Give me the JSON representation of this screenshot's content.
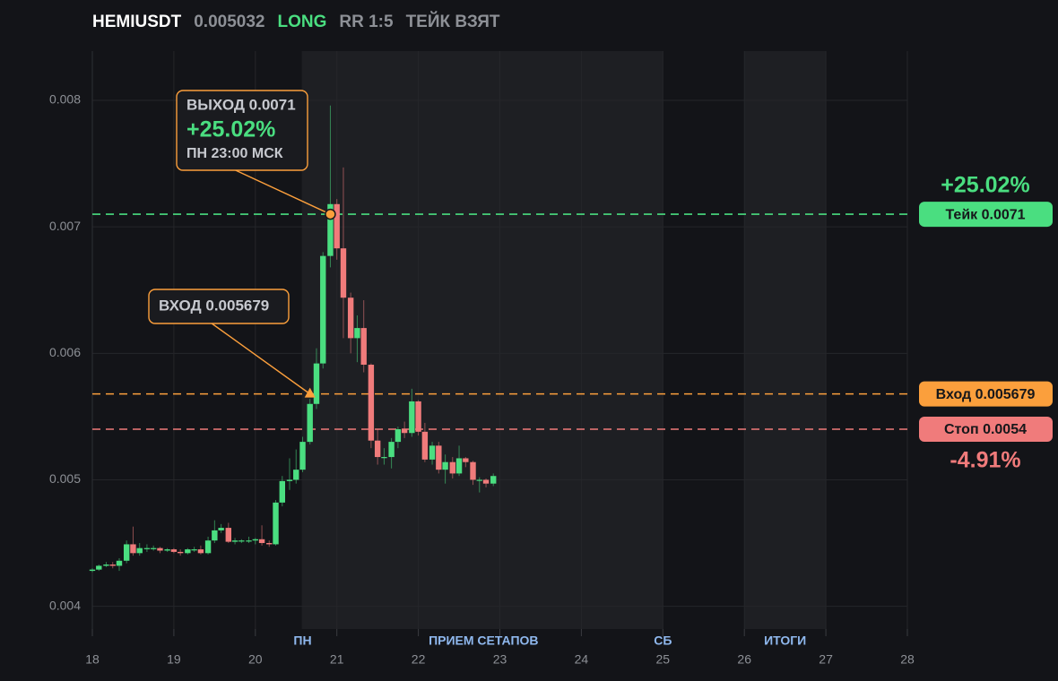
{
  "header": {
    "symbol": "HEMIUSDT",
    "price": "0.005032",
    "side": "LONG",
    "rr": "RR 1:5",
    "status": "ТЕЙК ВЗЯТ"
  },
  "chart_data": {
    "type": "candlestick",
    "xlim": [
      18,
      28
    ],
    "xticks": [
      18,
      19,
      20,
      21,
      22,
      23,
      24,
      25,
      26,
      27,
      28
    ],
    "ylim": [
      0.00382,
      0.00839
    ],
    "yticks": [
      0.004,
      0.005,
      0.006,
      0.007,
      0.008
    ],
    "grid": true,
    "up_color": "#4ade80",
    "down_color": "#f07b7b",
    "x": [
      18.0,
      18.08,
      18.17,
      18.25,
      18.33,
      18.42,
      18.5,
      18.58,
      18.67,
      18.75,
      18.83,
      18.92,
      19.0,
      19.08,
      19.17,
      19.25,
      19.33,
      19.42,
      19.5,
      19.58,
      19.67,
      19.75,
      19.83,
      19.92,
      20.0,
      20.08,
      20.17,
      20.25,
      20.33,
      20.42,
      20.5,
      20.58,
      20.67,
      20.75,
      20.83,
      20.92,
      21.0,
      21.08,
      21.17,
      21.25,
      21.33,
      21.42,
      21.5,
      21.58,
      21.67,
      21.75,
      21.83,
      21.92,
      22.0,
      22.08,
      22.17,
      22.25,
      22.33,
      22.42,
      22.5,
      22.58,
      22.67,
      22.75,
      22.83,
      22.92
    ],
    "open": [
      0.00428,
      0.00429,
      0.00432,
      0.00433,
      0.00432,
      0.00436,
      0.00449,
      0.00442,
      0.00446,
      0.00446,
      0.00446,
      0.00444,
      0.00445,
      0.00443,
      0.00442,
      0.00445,
      0.00445,
      0.00442,
      0.00452,
      0.0046,
      0.00462,
      0.00451,
      0.00452,
      0.00452,
      0.00452,
      0.00453,
      0.0045,
      0.00449,
      0.00482,
      0.00499,
      0.005,
      0.00508,
      0.0053,
      0.0056,
      0.00592,
      0.00677,
      0.00718,
      0.00683,
      0.00644,
      0.00612,
      0.0062,
      0.00591,
      0.00531,
      0.00518,
      0.00518,
      0.0053,
      0.0054,
      0.00537,
      0.00562,
      0.00538,
      0.00516,
      0.00527,
      0.00508,
      0.00514,
      0.00505,
      0.00517,
      0.00514,
      0.005,
      0.005,
      0.00497
    ],
    "high": [
      0.0043,
      0.00433,
      0.00435,
      0.00435,
      0.00438,
      0.00452,
      0.00463,
      0.0045,
      0.00449,
      0.00448,
      0.00447,
      0.00446,
      0.00446,
      0.00445,
      0.00446,
      0.00447,
      0.00448,
      0.00455,
      0.00468,
      0.00465,
      0.00466,
      0.00454,
      0.00453,
      0.00455,
      0.00454,
      0.00464,
      0.00452,
      0.00484,
      0.00503,
      0.00517,
      0.00524,
      0.00534,
      0.00564,
      0.00604,
      0.0068,
      0.00796,
      0.00722,
      0.00747,
      0.00648,
      0.0063,
      0.00642,
      0.00592,
      0.0054,
      0.00525,
      0.00533,
      0.00542,
      0.00546,
      0.00572,
      0.00563,
      0.00545,
      0.0053,
      0.0053,
      0.0052,
      0.00518,
      0.00527,
      0.00518,
      0.00515,
      0.00502,
      0.00501,
      0.00505
    ],
    "low": [
      0.00427,
      0.00428,
      0.00431,
      0.0043,
      0.00428,
      0.00434,
      0.0044,
      0.0044,
      0.00443,
      0.00444,
      0.00442,
      0.00443,
      0.00442,
      0.0044,
      0.00441,
      0.00443,
      0.00441,
      0.00441,
      0.0045,
      0.00458,
      0.0045,
      0.00449,
      0.0045,
      0.0045,
      0.00449,
      0.00448,
      0.00447,
      0.00448,
      0.00479,
      0.00492,
      0.00497,
      0.00506,
      0.00528,
      0.00556,
      0.00588,
      0.00668,
      0.00674,
      0.00612,
      0.006,
      0.00593,
      0.00585,
      0.00525,
      0.00512,
      0.00512,
      0.00509,
      0.00525,
      0.00533,
      0.00534,
      0.00535,
      0.00514,
      0.00512,
      0.00505,
      0.00497,
      0.00501,
      0.00503,
      0.0051,
      0.00496,
      0.0049,
      0.00494,
      0.00495
    ],
    "close": [
      0.00429,
      0.00432,
      0.00433,
      0.00432,
      0.00436,
      0.00449,
      0.00442,
      0.00446,
      0.00446,
      0.00446,
      0.00444,
      0.00445,
      0.00443,
      0.00442,
      0.00445,
      0.00445,
      0.00442,
      0.00452,
      0.0046,
      0.00462,
      0.00451,
      0.00452,
      0.00452,
      0.00452,
      0.00453,
      0.0045,
      0.00449,
      0.00482,
      0.00499,
      0.005,
      0.00508,
      0.0053,
      0.0056,
      0.00592,
      0.00677,
      0.00718,
      0.00683,
      0.00644,
      0.00612,
      0.0062,
      0.00591,
      0.00531,
      0.00518,
      0.00518,
      0.0053,
      0.0054,
      0.00537,
      0.00562,
      0.00538,
      0.00516,
      0.00527,
      0.00508,
      0.00514,
      0.00505,
      0.00517,
      0.00514,
      0.005,
      0.005,
      0.00497,
      0.00503
    ],
    "regions": [
      {
        "from": 20.57,
        "to": 25
      },
      {
        "from": 26,
        "to": 27
      }
    ],
    "sessions": [
      {
        "label": "ПН",
        "x": 20.58
      },
      {
        "label": "ПРИЕМ СЕТАПОВ",
        "x": 22.8
      },
      {
        "label": "СБ",
        "x": 25
      },
      {
        "label": "ИТОГИ",
        "x": 26.5
      }
    ],
    "levels": [
      {
        "name": "Тейк 0.0071",
        "value": 0.0071,
        "color": "#4ade80",
        "change": "+25.02%"
      },
      {
        "name": "Вход 0.005679",
        "value": 0.005679,
        "color": "#fb9f3c"
      },
      {
        "name": "Стоп 0.0054",
        "value": 0.0054,
        "color": "#f07b7b",
        "change": "-4.91%"
      }
    ],
    "markers": [
      {
        "shape": "triangle",
        "x": 20.67,
        "y": 0.005679,
        "lines": [
          "ВХОД 0.005679"
        ]
      },
      {
        "shape": "circle",
        "x": 20.92,
        "y": 0.0071,
        "lines": [
          "ВЫХОД 0.0071",
          "+25.02%",
          "ПН 23:00 МСК"
        ]
      }
    ]
  }
}
